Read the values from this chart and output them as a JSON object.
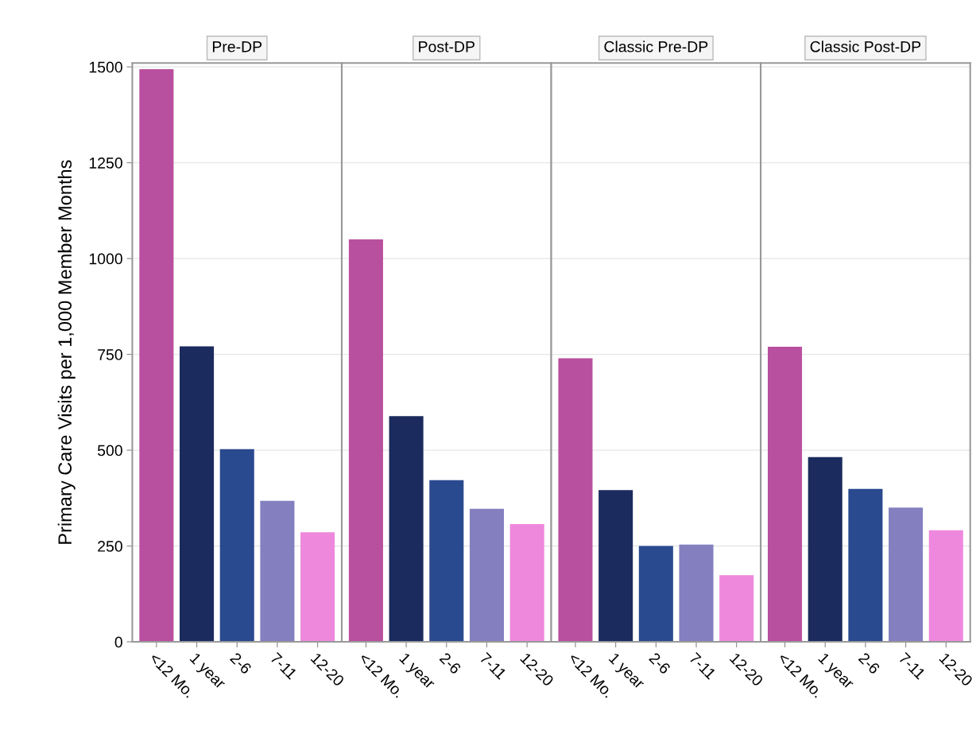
{
  "chart_data": [
    {
      "type": "bar",
      "title": "Pre-DP",
      "ylabel": "Primary Care Visits per 1,000 Member Months",
      "categories": [
        "<12 Mo.",
        "1 year",
        "2-6",
        "7-11",
        "12-20"
      ],
      "values": [
        1494,
        771,
        503,
        368,
        286
      ],
      "colors": [
        "#b9509f",
        "#1b2b5e",
        "#2a4a8f",
        "#8480c0",
        "#ee88dd"
      ],
      "ylim": [
        0,
        1510
      ],
      "yticks": [
        0,
        250,
        500,
        750,
        1000,
        1250,
        1500
      ],
      "grid": "y"
    },
    {
      "type": "bar",
      "title": "Post-DP",
      "categories": [
        "<12 Mo.",
        "1 year",
        "2-6",
        "7-11",
        "12-20"
      ],
      "values": [
        1050,
        589,
        422,
        347,
        307
      ],
      "colors": [
        "#b9509f",
        "#1b2b5e",
        "#2a4a8f",
        "#8480c0",
        "#ee88dd"
      ],
      "ylim": [
        0,
        1510
      ],
      "yticks": [
        0,
        250,
        500,
        750,
        1000,
        1250,
        1500
      ],
      "grid": "y",
      "tick_labels": "x"
    },
    {
      "type": "bar",
      "title": "Classic Pre-DP",
      "categories": [
        "<12 Mo.",
        "1 year",
        "2-6",
        "7-11",
        "12-20"
      ],
      "values": [
        740,
        396,
        250,
        254,
        174
      ],
      "colors": [
        "#b9509f",
        "#1b2b5e",
        "#2a4a8f",
        "#8480c0",
        "#ee88dd"
      ],
      "ylim": [
        0,
        1510
      ],
      "yticks": [
        0,
        250,
        500,
        750,
        1000,
        1250,
        1500
      ],
      "grid": "y",
      "tick_labels": "x"
    },
    {
      "type": "bar",
      "title": "Classic Post-DP",
      "categories": [
        "<12 Mo.",
        "1 year",
        "2-6",
        "7-11",
        "12-20"
      ],
      "values": [
        770,
        482,
        399,
        350,
        291
      ],
      "colors": [
        "#b9509f",
        "#1b2b5e",
        "#2a4a8f",
        "#8480c0",
        "#ee88dd"
      ],
      "ylim": [
        0,
        1510
      ],
      "yticks": [
        0,
        250,
        500,
        750,
        1000,
        1250,
        1500
      ],
      "grid": "y",
      "tick_labels": "x"
    }
  ]
}
